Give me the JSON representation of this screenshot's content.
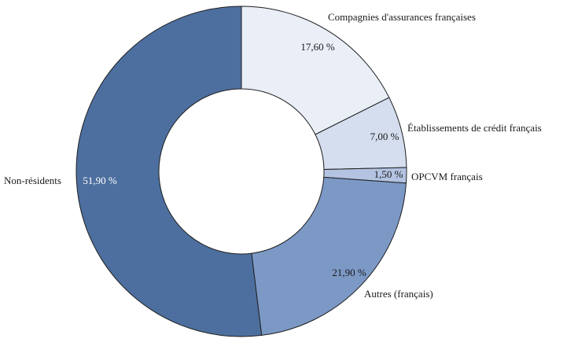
{
  "chart_data": {
    "type": "pie",
    "subtype": "donut",
    "title": "",
    "categories": [
      "Compagnies d'assurances françaises",
      "Établissements de crédit français",
      "OPCVM français",
      "Autres (français)",
      "Non-résidents"
    ],
    "values": [
      17.6,
      7.0,
      1.5,
      21.9,
      51.9
    ],
    "value_labels": [
      "17,60 %",
      "7,00 %",
      "1,50 %",
      "21,90 %",
      "51,90 %"
    ],
    "colors": [
      "#E9EEF7",
      "#D4DEEF",
      "#B3C3E1",
      "#7C99C6",
      "#4D6F9F"
    ],
    "outline_color": "#1f1f1f",
    "start_angle_deg": 0,
    "direction": "clockwise",
    "legend": "none",
    "labels_position": "adjacent-outside",
    "value_label_5_color": "#ffffff"
  },
  "labels": {
    "compagnies": "Compagnies d'assurances françaises",
    "etablissements": "Établissements de crédit français",
    "opcvm": "OPCVM français",
    "autres": "Autres (français)",
    "non_residents": "Non-résidents"
  },
  "values": {
    "compagnies": "17,60 %",
    "etablissements": "7,00 %",
    "opcvm": "1,50 %",
    "autres": "21,90 %",
    "non_residents": "51,90 %"
  }
}
